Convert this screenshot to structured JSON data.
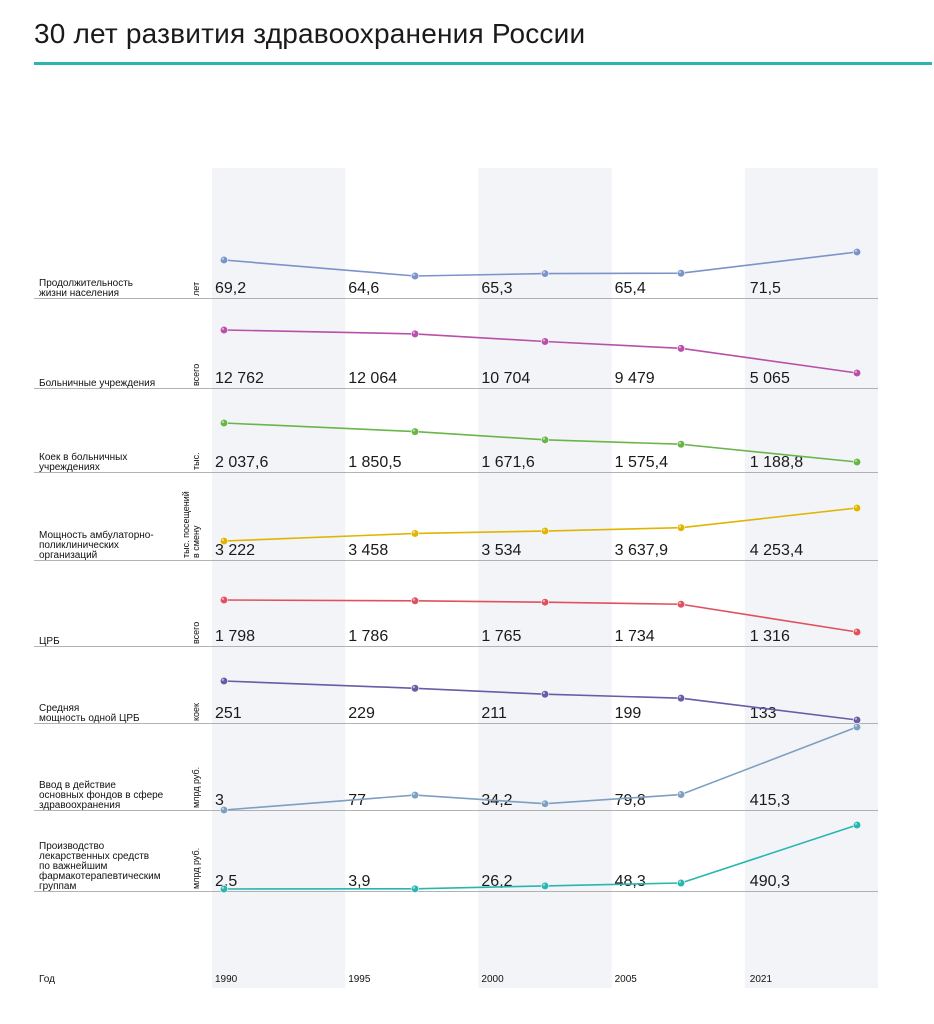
{
  "title": "30 лет развития здравоохранения России",
  "colors": {
    "accent_rule": "#2ab5b1",
    "band": "#f2f4f7",
    "baseline": "#9a9a9a"
  },
  "chart_data": {
    "type": "line",
    "x_axis_label": "Год",
    "years": [
      "1990",
      "1995",
      "2000",
      "2005",
      "2021"
    ],
    "rows": [
      {
        "label_lines": [
          "Продолжительность",
          "жизни населения"
        ],
        "unit_lines": [
          "лет"
        ],
        "color": "#7b93c9",
        "values": [
          69.2,
          64.6,
          65.3,
          65.4,
          71.5
        ],
        "value_labels": [
          "69,2",
          "64,6",
          "65,3",
          "65,4",
          "71,5"
        ]
      },
      {
        "label_lines": [
          "Больничные учреждения"
        ],
        "unit_lines": [
          "всего"
        ],
        "color": "#b94fa9",
        "values": [
          12762,
          12064,
          10704,
          9479,
          5065
        ],
        "value_labels": [
          "12 762",
          "12 064",
          "10 704",
          "9 479",
          "5 065"
        ]
      },
      {
        "label_lines": [
          "Коек в больничных",
          "учреждениях"
        ],
        "unit_lines": [
          "тыс."
        ],
        "color": "#6ab54a",
        "values": [
          2037.6,
          1850.5,
          1671.6,
          1575.4,
          1188.8
        ],
        "value_labels": [
          "2 037,6",
          "1 850,5",
          "1 671,6",
          "1 575,4",
          "1 188,8"
        ]
      },
      {
        "label_lines": [
          "Мощность амбулаторно-",
          "поликлинических",
          "организаций"
        ],
        "unit_lines": [
          "тыс. посещений",
          "в смену"
        ],
        "color": "#e1b400",
        "values": [
          3222,
          3458,
          3534,
          3637.9,
          4253.4
        ],
        "value_labels": [
          "3 222",
          "3 458",
          "3 534",
          "3 637,9",
          "4 253,4"
        ]
      },
      {
        "label_lines": [
          "ЦРБ"
        ],
        "unit_lines": [
          "всего"
        ],
        "color": "#e0505f",
        "values": [
          1798,
          1786,
          1765,
          1734,
          1316
        ],
        "value_labels": [
          "1 798",
          "1 786",
          "1 765",
          "1 734",
          "1 316"
        ]
      },
      {
        "label_lines": [
          "Средняя",
          "мощность одной ЦРБ"
        ],
        "unit_lines": [
          "коек"
        ],
        "color": "#6a5aa7",
        "values": [
          251,
          229,
          211,
          199,
          133
        ],
        "value_labels": [
          "251",
          "229",
          "211",
          "199",
          "133"
        ]
      },
      {
        "label_lines": [
          "Ввод в действие",
          "основных фондов в сфере",
          "здравоохранения"
        ],
        "unit_lines": [
          "млрд руб."
        ],
        "color": "#7d9fc1",
        "values": [
          3,
          77,
          34.2,
          79.8,
          415.3
        ],
        "value_labels": [
          "3",
          "77",
          "34,2",
          "79,8",
          "415,3"
        ]
      },
      {
        "label_lines": [
          "Производство",
          "лекарственных средств",
          "по важнейшим",
          "фармакотерапевтическим",
          "группам"
        ],
        "unit_lines": [
          "млрд руб."
        ],
        "color": "#2ab5b1",
        "values": [
          2.5,
          3.9,
          26.2,
          48.3,
          490.3
        ],
        "value_labels": [
          "2,5",
          "3,9",
          "26,2",
          "48,3",
          "490,3"
        ]
      }
    ]
  }
}
